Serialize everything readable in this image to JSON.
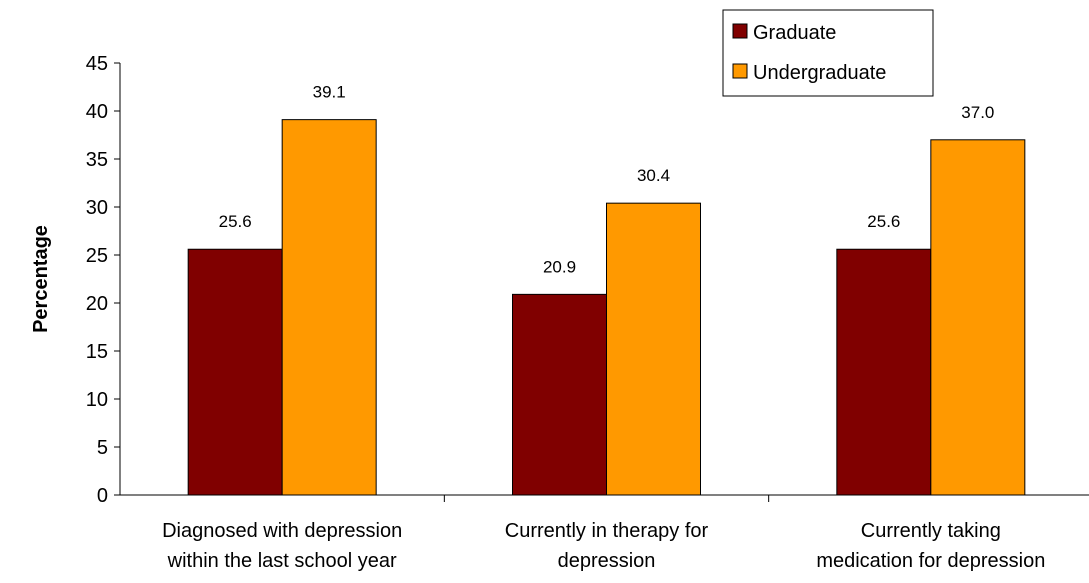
{
  "chart_data": {
    "type": "bar",
    "categories": [
      [
        "Diagnosed with depression",
        "within the last school year"
      ],
      [
        "Currently in therapy for",
        "depression"
      ],
      [
        "Currently taking",
        "medication for depression"
      ]
    ],
    "series": [
      {
        "name": "Graduate",
        "values": [
          25.6,
          20.9,
          25.6
        ],
        "labels": [
          "25.6",
          "20.9",
          "25.6"
        ],
        "color": "#800000"
      },
      {
        "name": "Undergraduate",
        "values": [
          39.1,
          30.4,
          37.0
        ],
        "labels": [
          "39.1",
          "30.4",
          "37.0"
        ],
        "color": "#FF9900"
      }
    ],
    "ylabel": "Percentage",
    "xlabel": "",
    "ylim": [
      0,
      45
    ],
    "yticks": [
      "0",
      "5",
      "10",
      "15",
      "20",
      "25",
      "30",
      "35",
      "40",
      "45"
    ],
    "grid": false,
    "legend_position": "top-right"
  }
}
